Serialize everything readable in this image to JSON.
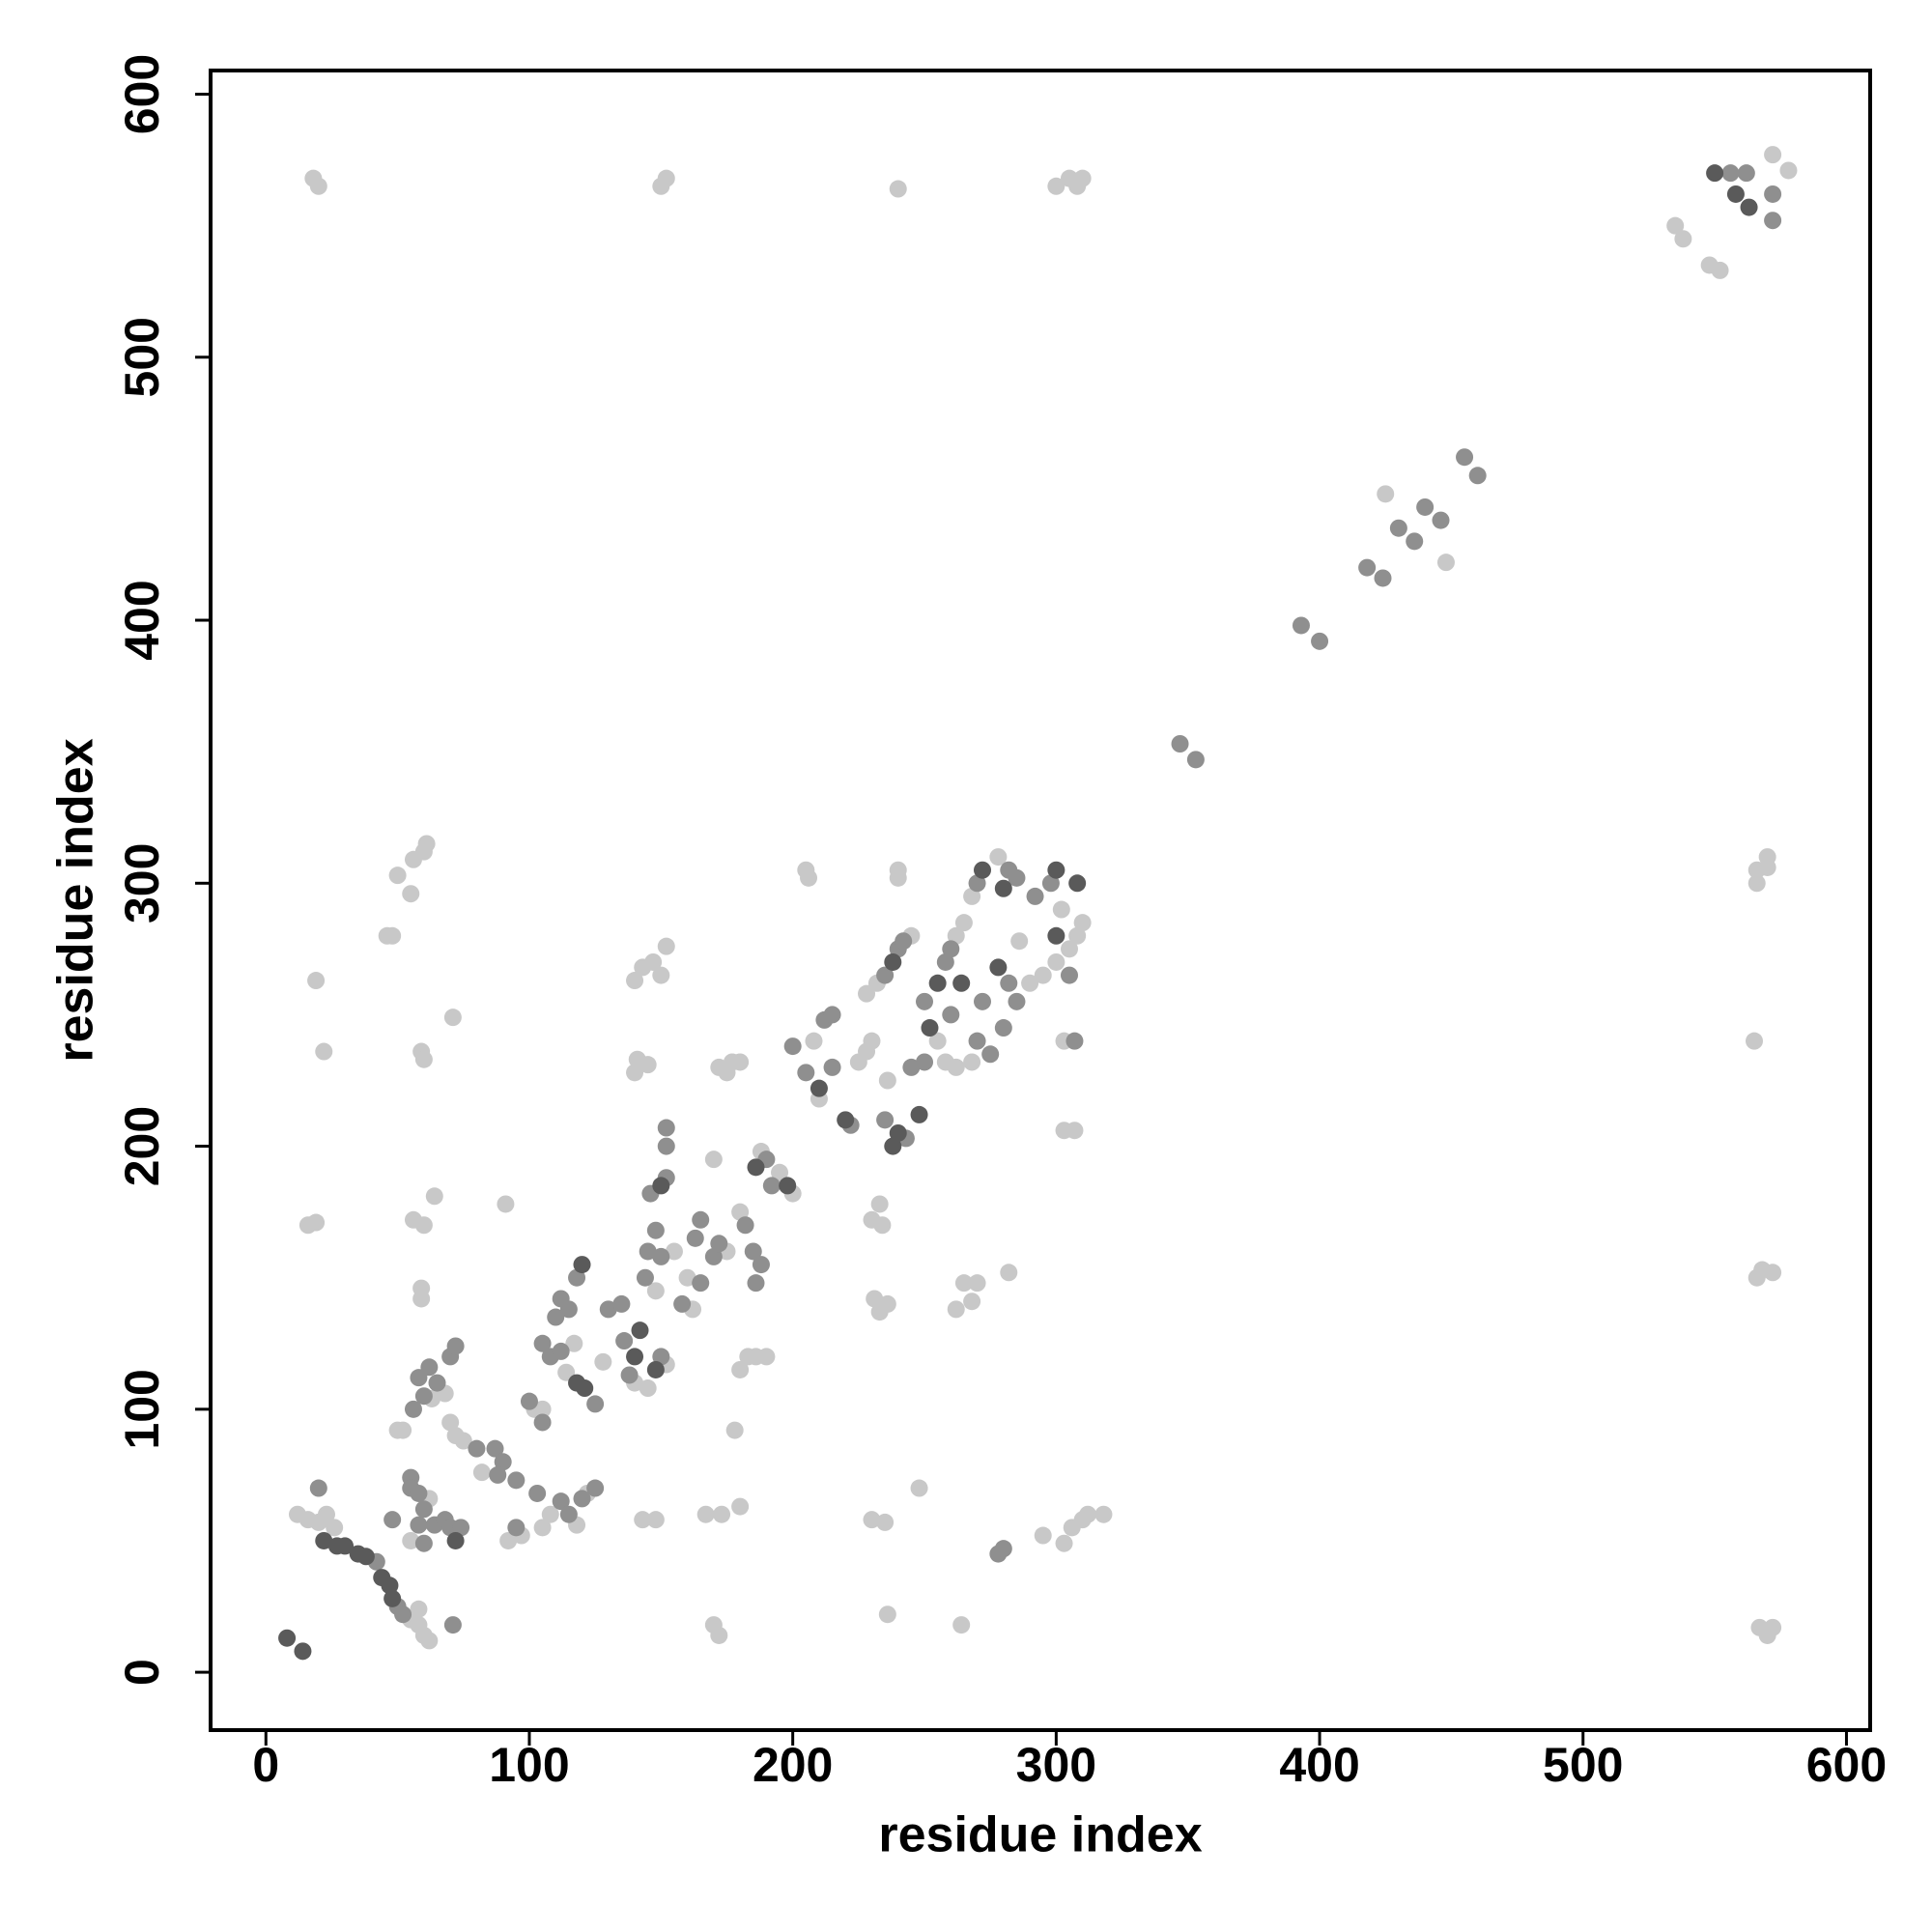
{
  "chart_data": {
    "type": "scatter",
    "xlabel": "residue index",
    "ylabel": "residue index",
    "xlim": [
      -21,
      609
    ],
    "ylim": [
      -22,
      609
    ],
    "xticks": [
      0,
      100,
      200,
      300,
      400,
      500,
      600
    ],
    "yticks": [
      0,
      100,
      200,
      300,
      400,
      500,
      600
    ],
    "grid": false,
    "series": [
      {
        "color": "#c8c8c8",
        "x": [
          18,
          20,
          150,
          152,
          240,
          300,
          305,
          308,
          310,
          535,
          538,
          548,
          552,
          572,
          578,
          425,
          448,
          566,
          566,
          570,
          570,
          565,
          566,
          568,
          572,
          567,
          570,
          572,
          46,
          48,
          50,
          55,
          56,
          60,
          61,
          19,
          22,
          71,
          59,
          60,
          16,
          19,
          56,
          60,
          64,
          91,
          59,
          59,
          140,
          143,
          147,
          150,
          152,
          141,
          145,
          140,
          172,
          177,
          180,
          175,
          205,
          206,
          240,
          240,
          303,
          303,
          307,
          233,
          230,
          234,
          231,
          236,
          233,
          262,
          265,
          270,
          268,
          282,
          248,
          230,
          235,
          236,
          264,
          170,
          172,
          173,
          167,
          180,
          143,
          148,
          295,
          303,
          306,
          310,
          312,
          318,
          178,
          12,
          16,
          20,
          23,
          26,
          55,
          58,
          60,
          62,
          58,
          50,
          52,
          62,
          55,
          63,
          68,
          70,
          72,
          75,
          82,
          92,
          97,
          102,
          105,
          108,
          105,
          118,
          122,
          114,
          117,
          128,
          140,
          145,
          152,
          148,
          155,
          160,
          162,
          175,
          170,
          180,
          188,
          195,
          200,
          180,
          183,
          186,
          190,
          208,
          210,
          225,
          228,
          230,
          228,
          232,
          245,
          236,
          262,
          265,
          268,
          278,
          268,
          262,
          295,
          308,
          302,
          286,
          255,
          258,
          300,
          305,
          310,
          290
        ],
        "values": [
          568,
          565,
          565,
          568,
          564,
          565,
          568,
          565,
          568,
          550,
          545,
          535,
          533,
          577,
          571,
          448,
          422,
          300,
          305,
          306,
          310,
          240,
          150,
          153,
          152,
          17,
          14,
          17,
          280,
          280,
          303,
          296,
          309,
          312,
          315,
          263,
          236,
          249,
          236,
          233,
          170,
          171,
          172,
          170,
          181,
          178,
          146,
          142,
          263,
          268,
          270,
          265,
          276,
          233,
          231,
          228,
          230,
          232,
          232,
          228,
          305,
          302,
          305,
          302,
          240,
          206,
          206,
          178,
          172,
          170,
          142,
          140,
          137,
          138,
          148,
          148,
          141,
          152,
          70,
          58,
          57,
          22,
          18,
          18,
          14,
          60,
          60,
          63,
          58,
          58,
          52,
          49,
          55,
          58,
          60,
          60,
          92,
          60,
          58,
          57,
          60,
          55,
          20,
          18,
          14,
          12,
          24,
          92,
          92,
          66,
          50,
          104,
          106,
          95,
          90,
          88,
          76,
          50,
          52,
          100,
          100,
          60,
          55,
          56,
          68,
          114,
          125,
          118,
          110,
          108,
          117,
          145,
          160,
          150,
          138,
          160,
          195,
          175,
          198,
          190,
          182,
          115,
          120,
          120,
          120,
          240,
          218,
          232,
          236,
          240,
          258,
          262,
          280,
          225,
          280,
          285,
          295,
          310,
          232,
          230,
          265,
          280,
          290,
          278,
          240,
          232,
          270,
          275,
          285,
          262
        ]
      },
      {
        "color": "#8f8f8f",
        "x": [
          460,
          455,
          418,
          424,
          430,
          436,
          440,
          446,
          393,
          400,
          347,
          353,
          152,
          152,
          307,
          278,
          280,
          20,
          42,
          50,
          52,
          71,
          48,
          55,
          55,
          58,
          58,
          60,
          64,
          60,
          68,
          70,
          74,
          60,
          58,
          62,
          65,
          70,
          72,
          56,
          80,
          87,
          90,
          88,
          95,
          95,
          100,
          105,
          103,
          112,
          115,
          120,
          125,
          105,
          108,
          110,
          112,
          115,
          118,
          112,
          125,
          130,
          135,
          136,
          138,
          150,
          144,
          145,
          150,
          148,
          146,
          152,
          163,
          165,
          158,
          165,
          170,
          172,
          182,
          185,
          186,
          188,
          190,
          192,
          200,
          205,
          212,
          215,
          215,
          222,
          235,
          240,
          242,
          235,
          243,
          250,
          245,
          250,
          258,
          260,
          270,
          282,
          285,
          270,
          275,
          280,
          285,
          298,
          305,
          292,
          282,
          272,
          260,
          556,
          572,
          572,
          562
        ],
        "values": [
          455,
          462,
          420,
          416,
          435,
          430,
          443,
          438,
          398,
          392,
          353,
          347,
          200,
          207,
          240,
          45,
          47,
          70,
          42,
          25,
          22,
          18,
          58,
          74,
          70,
          68,
          56,
          62,
          56,
          49,
          58,
          55,
          55,
          105,
          112,
          116,
          110,
          120,
          124,
          100,
          85,
          85,
          80,
          75,
          73,
          55,
          103,
          95,
          68,
          65,
          60,
          66,
          70,
          125,
          120,
          135,
          142,
          138,
          150,
          122,
          102,
          138,
          140,
          126,
          113,
          120,
          150,
          160,
          158,
          168,
          182,
          188,
          165,
          172,
          140,
          148,
          158,
          163,
          170,
          160,
          148,
          155,
          195,
          185,
          238,
          228,
          248,
          250,
          230,
          208,
          265,
          275,
          278,
          210,
          203,
          232,
          230,
          255,
          270,
          275,
          300,
          305,
          302,
          240,
          235,
          245,
          255,
          300,
          265,
          295,
          262,
          255,
          250,
          570,
          562,
          552,
          570
        ]
      },
      {
        "color": "#5a5a5a",
        "x": [
          8,
          14,
          22,
          27,
          30,
          35,
          38,
          44,
          47,
          48,
          72,
          120,
          118,
          121,
          140,
          142,
          148,
          150,
          186,
          198,
          210,
          220,
          238,
          238,
          240,
          248,
          252,
          255,
          272,
          280,
          300,
          308,
          300,
          278,
          264,
          558,
          563,
          550
        ],
        "values": [
          13,
          8,
          50,
          48,
          48,
          45,
          44,
          36,
          33,
          28,
          50,
          155,
          110,
          108,
          120,
          130,
          115,
          185,
          192,
          185,
          222,
          210,
          270,
          200,
          205,
          212,
          245,
          262,
          305,
          298,
          305,
          300,
          280,
          268,
          262,
          562,
          557,
          570
        ]
      }
    ]
  }
}
